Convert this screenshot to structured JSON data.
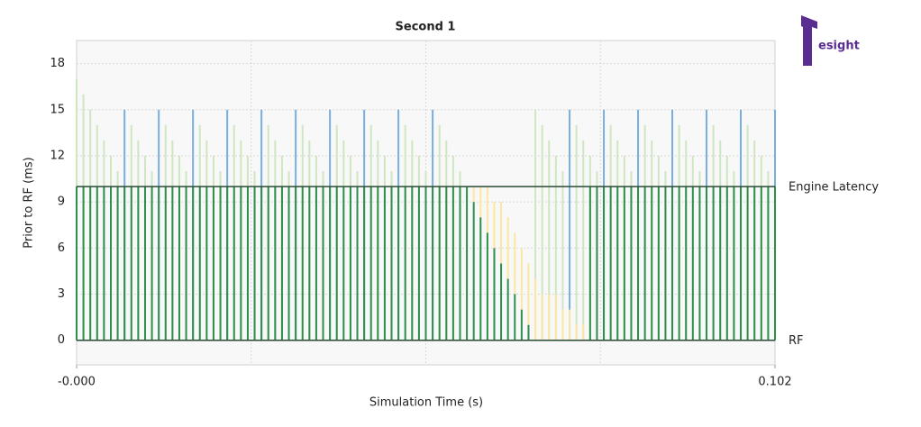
{
  "chart_data": {
    "type": "bar",
    "title": "Second 1",
    "xlabel": "Simulation Time (s)",
    "ylabel": "Prior to RF (ms)",
    "logo": "esight",
    "x": [
      0,
      0.001,
      0.002,
      0.003,
      0.004,
      0.005,
      0.006,
      0.007,
      0.008,
      0.009,
      0.01,
      0.011,
      0.012,
      0.013,
      0.014,
      0.015,
      0.016,
      0.017,
      0.018,
      0.019,
      0.02,
      0.021,
      0.022,
      0.023,
      0.024,
      0.025,
      0.026,
      0.027,
      0.028,
      0.029,
      0.03,
      0.031,
      0.032,
      0.033,
      0.034,
      0.035,
      0.036,
      0.037,
      0.038,
      0.039,
      0.04,
      0.041,
      0.042,
      0.043,
      0.044,
      0.045,
      0.046,
      0.047,
      0.048,
      0.049,
      0.05,
      0.051,
      0.052,
      0.053,
      0.054,
      0.055,
      0.056,
      0.057,
      0.058,
      0.059,
      0.06,
      0.061,
      0.062,
      0.063,
      0.064,
      0.065,
      0.066,
      0.067,
      0.068,
      0.069,
      0.07,
      0.071,
      0.072,
      0.073,
      0.074,
      0.075,
      0.076,
      0.077,
      0.078,
      0.079,
      0.08,
      0.081,
      0.082,
      0.083,
      0.084,
      0.085,
      0.086,
      0.087,
      0.088,
      0.089,
      0.09,
      0.091,
      0.092,
      0.093,
      0.094,
      0.095,
      0.096,
      0.097,
      0.098,
      0.099,
      0.1,
      0.101,
      0.102
    ],
    "series": [
      {
        "color": "#cfe6c3",
        "values": [
          17,
          16,
          15,
          14,
          13,
          12,
          11,
          null,
          14,
          13,
          12,
          11,
          null,
          14,
          13,
          12,
          11,
          null,
          14,
          13,
          12,
          11,
          null,
          14,
          13,
          12,
          11,
          null,
          14,
          13,
          12,
          11,
          null,
          14,
          13,
          12,
          11,
          null,
          14,
          13,
          12,
          11,
          null,
          14,
          13,
          12,
          11,
          null,
          14,
          13,
          12,
          11,
          null,
          14,
          13,
          12,
          11,
          null,
          null,
          null,
          null,
          null,
          null,
          null,
          null,
          null,
          null,
          15,
          14,
          13,
          12,
          11,
          null,
          14,
          13,
          12,
          11,
          null,
          14,
          13,
          12,
          11,
          null,
          14,
          13,
          12,
          11,
          null,
          14,
          13,
          12,
          11,
          null,
          14,
          13,
          12,
          11,
          null,
          14,
          13,
          12,
          11,
          null
        ]
      },
      {
        "color": "#78aee0",
        "values": [
          null,
          null,
          null,
          null,
          null,
          null,
          null,
          15,
          null,
          null,
          null,
          null,
          15,
          null,
          null,
          null,
          null,
          15,
          null,
          null,
          null,
          null,
          15,
          null,
          null,
          null,
          null,
          15,
          null,
          null,
          null,
          null,
          15,
          null,
          null,
          null,
          null,
          15,
          null,
          null,
          null,
          null,
          15,
          null,
          null,
          null,
          null,
          15,
          null,
          null,
          null,
          null,
          15,
          null,
          null,
          null,
          null,
          null,
          null,
          null,
          null,
          null,
          null,
          null,
          null,
          null,
          null,
          null,
          null,
          null,
          null,
          null,
          15,
          null,
          null,
          null,
          null,
          15,
          null,
          null,
          null,
          null,
          15,
          null,
          null,
          null,
          null,
          15,
          null,
          null,
          null,
          null,
          15,
          null,
          null,
          null,
          null,
          15,
          null,
          null,
          null,
          null,
          15
        ]
      },
      {
        "color": "#2e8f4c",
        "values": [
          10,
          10,
          10,
          10,
          10,
          10,
          10,
          10,
          10,
          10,
          10,
          10,
          10,
          10,
          10,
          10,
          10,
          10,
          10,
          10,
          10,
          10,
          10,
          10,
          10,
          10,
          10,
          10,
          10,
          10,
          10,
          10,
          10,
          10,
          10,
          10,
          10,
          10,
          10,
          10,
          10,
          10,
          10,
          10,
          10,
          10,
          10,
          10,
          10,
          10,
          10,
          10,
          10,
          10,
          10,
          10,
          10,
          10,
          9,
          8,
          7,
          6,
          5,
          4,
          3,
          2,
          1,
          0,
          0,
          0,
          0,
          0,
          0,
          0,
          0,
          10,
          10,
          10,
          10,
          10,
          10,
          10,
          10,
          10,
          10,
          10,
          10,
          10,
          10,
          10,
          10,
          10,
          10,
          10,
          10,
          10,
          10,
          10,
          10,
          10,
          10,
          10,
          10
        ]
      },
      {
        "color": "#fbe6a2",
        "stacked_on": 2,
        "values": [
          null,
          null,
          null,
          null,
          null,
          null,
          null,
          null,
          null,
          null,
          null,
          null,
          null,
          null,
          null,
          null,
          null,
          null,
          null,
          null,
          null,
          null,
          null,
          null,
          null,
          null,
          null,
          null,
          null,
          null,
          null,
          null,
          null,
          null,
          null,
          null,
          null,
          null,
          null,
          null,
          null,
          null,
          null,
          null,
          null,
          null,
          null,
          null,
          null,
          null,
          null,
          null,
          null,
          null,
          null,
          null,
          null,
          null,
          1,
          2,
          3,
          3,
          4,
          4,
          4,
          4,
          4,
          4,
          3,
          3,
          3,
          2,
          2,
          1,
          1,
          null,
          null,
          null,
          null,
          null,
          null,
          null,
          null,
          null,
          null,
          null,
          null,
          null,
          null,
          null,
          null,
          null,
          null,
          null,
          null,
          null,
          null,
          null,
          null,
          null,
          null,
          null,
          null
        ]
      }
    ],
    "hlines": [
      {
        "value": 10,
        "label": "Engine Latency"
      },
      {
        "value": 0,
        "label": "RF"
      }
    ],
    "hline_color": "#2b4a35",
    "xlim": [
      0,
      0.102
    ],
    "xticks": [
      {
        "value": 0,
        "label": "-0.000"
      },
      {
        "value": 0.102,
        "label": "0.102"
      }
    ],
    "xgrid": [
      0.0255,
      0.051,
      0.0765
    ],
    "ylim": [
      -1.6,
      19.5
    ],
    "yticks": [
      0,
      3,
      6,
      9,
      12,
      15,
      18
    ],
    "grid": true
  }
}
